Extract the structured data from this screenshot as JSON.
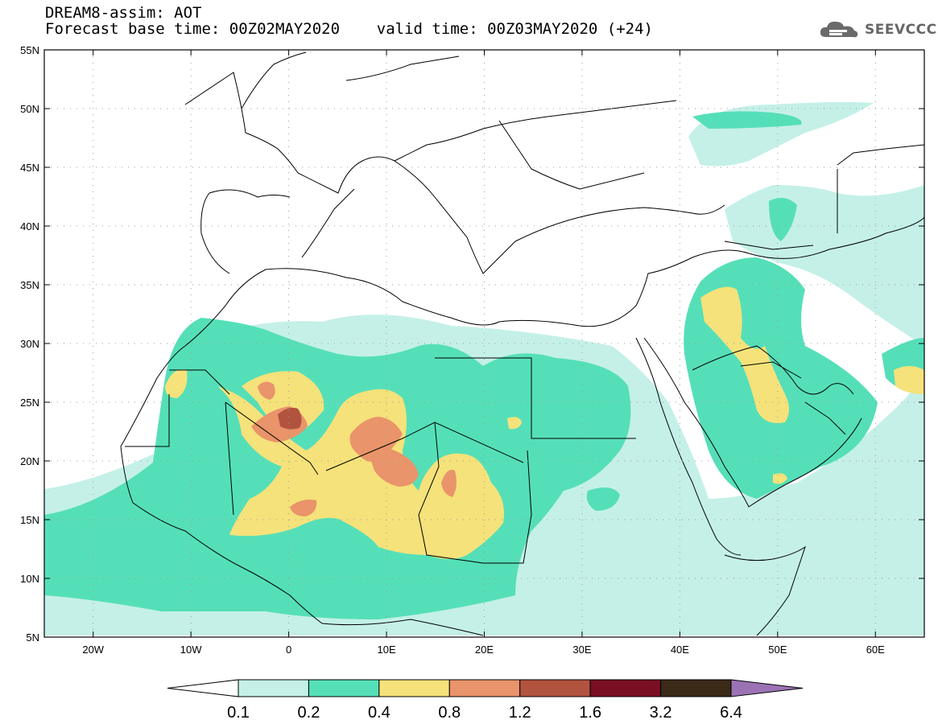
{
  "header": {
    "line1": "DREAM8-assim: AOT",
    "line2": "Forecast base time: 00Z02MAY2020    valid time: 00Z03MAY2020 (+24)",
    "logo": "SEEVCCC",
    "logo_icon": "cloud-icon"
  },
  "map": {
    "projection": "cylindrical",
    "lon_range": [
      -25,
      65
    ],
    "lat_range": [
      5,
      55
    ],
    "lat_ticks": [
      "55N",
      "50N",
      "45N",
      "40N",
      "35N",
      "30N",
      "25N",
      "20N",
      "15N",
      "10N",
      "5N"
    ],
    "lon_ticks": [
      "20W",
      "10W",
      "0",
      "10E",
      "20E",
      "30E",
      "40E",
      "50E",
      "60E"
    ],
    "grid": "dotted"
  },
  "legend": {
    "labels": [
      "0.1",
      "0.2",
      "0.4",
      "0.8",
      "1.2",
      "1.6",
      "3.2",
      "6.4"
    ],
    "colors": [
      "#ffffff",
      "#c4f0e8",
      "#55dfb8",
      "#f5e27a",
      "#e9946a",
      "#b2533f",
      "#7a0f24",
      "#3b2a18",
      "#9b73b5"
    ]
  }
}
